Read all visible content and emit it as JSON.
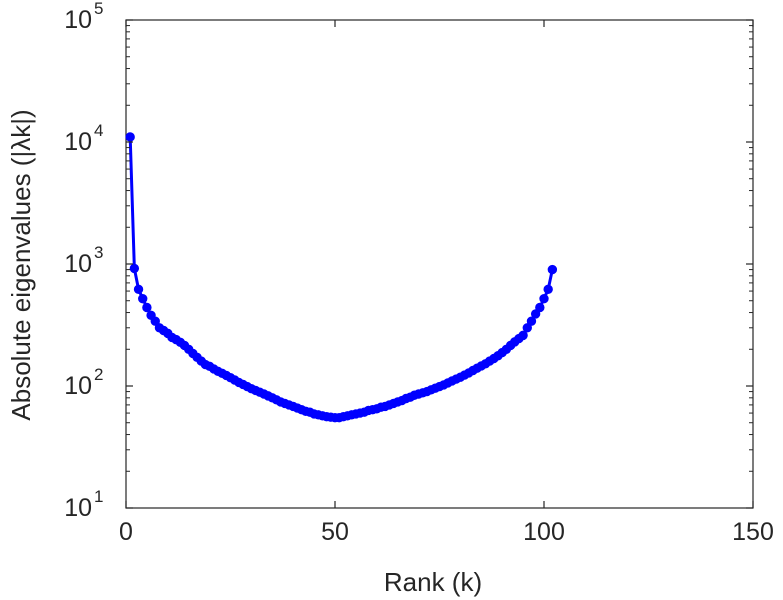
{
  "chart_data": {
    "type": "line",
    "xlabel": "Rank (k)",
    "ylabel": "Absolute eigenvalues (|λk|)",
    "yscale": "log",
    "xlim": [
      0,
      150
    ],
    "ylim": [
      10,
      100000
    ],
    "xticks": [
      0,
      50,
      100,
      150
    ],
    "xtick_labels": [
      "0",
      "50",
      "100",
      "150"
    ],
    "yticks": [
      10,
      100,
      1000,
      10000,
      100000
    ],
    "ytick_labels": [
      {
        "base": "10",
        "exp": "1"
      },
      {
        "base": "10",
        "exp": "2"
      },
      {
        "base": "10",
        "exp": "3"
      },
      {
        "base": "10",
        "exp": "4"
      },
      {
        "base": "10",
        "exp": "5"
      }
    ],
    "grid": false,
    "series": [
      {
        "color": "#0000ff",
        "marker": "circle",
        "x": [
          1,
          2,
          3,
          4,
          5,
          6,
          7,
          8,
          9,
          10,
          11,
          12,
          13,
          14,
          15,
          16,
          17,
          18,
          19,
          20,
          21,
          22,
          23,
          24,
          25,
          26,
          27,
          28,
          29,
          30,
          31,
          32,
          33,
          34,
          35,
          36,
          37,
          38,
          39,
          40,
          41,
          42,
          43,
          44,
          45,
          46,
          47,
          48,
          49,
          50,
          51,
          52,
          53,
          54,
          55,
          56,
          57,
          58,
          59,
          60,
          61,
          62,
          63,
          64,
          65,
          66,
          67,
          68,
          69,
          70,
          71,
          72,
          73,
          74,
          75,
          76,
          77,
          78,
          79,
          80,
          81,
          82,
          83,
          84,
          85,
          86,
          87,
          88,
          89,
          90,
          91,
          92,
          93,
          94,
          95,
          96,
          97,
          98,
          99,
          100,
          101,
          102
        ],
        "values": [
          11000,
          920,
          620,
          520,
          440,
          380,
          340,
          300,
          285,
          270,
          250,
          240,
          228,
          215,
          200,
          185,
          172,
          160,
          150,
          145,
          138,
          132,
          127,
          122,
          117,
          112,
          107,
          103,
          99,
          95,
          92,
          89,
          86,
          83,
          80,
          77,
          74,
          72,
          70,
          68,
          66,
          64,
          62,
          61,
          59,
          58,
          57,
          56,
          55.5,
          55,
          55,
          56,
          57,
          58,
          59,
          60,
          61,
          63,
          64,
          65,
          67,
          68,
          70,
          72,
          74,
          76,
          79,
          81,
          84,
          86,
          88,
          90,
          93,
          96,
          99,
          102,
          106,
          110,
          114,
          118,
          123,
          128,
          134,
          140,
          146,
          152,
          160,
          168,
          177,
          188,
          200,
          215,
          230,
          245,
          260,
          300,
          340,
          390,
          440,
          520,
          620,
          900
        ]
      }
    ]
  }
}
